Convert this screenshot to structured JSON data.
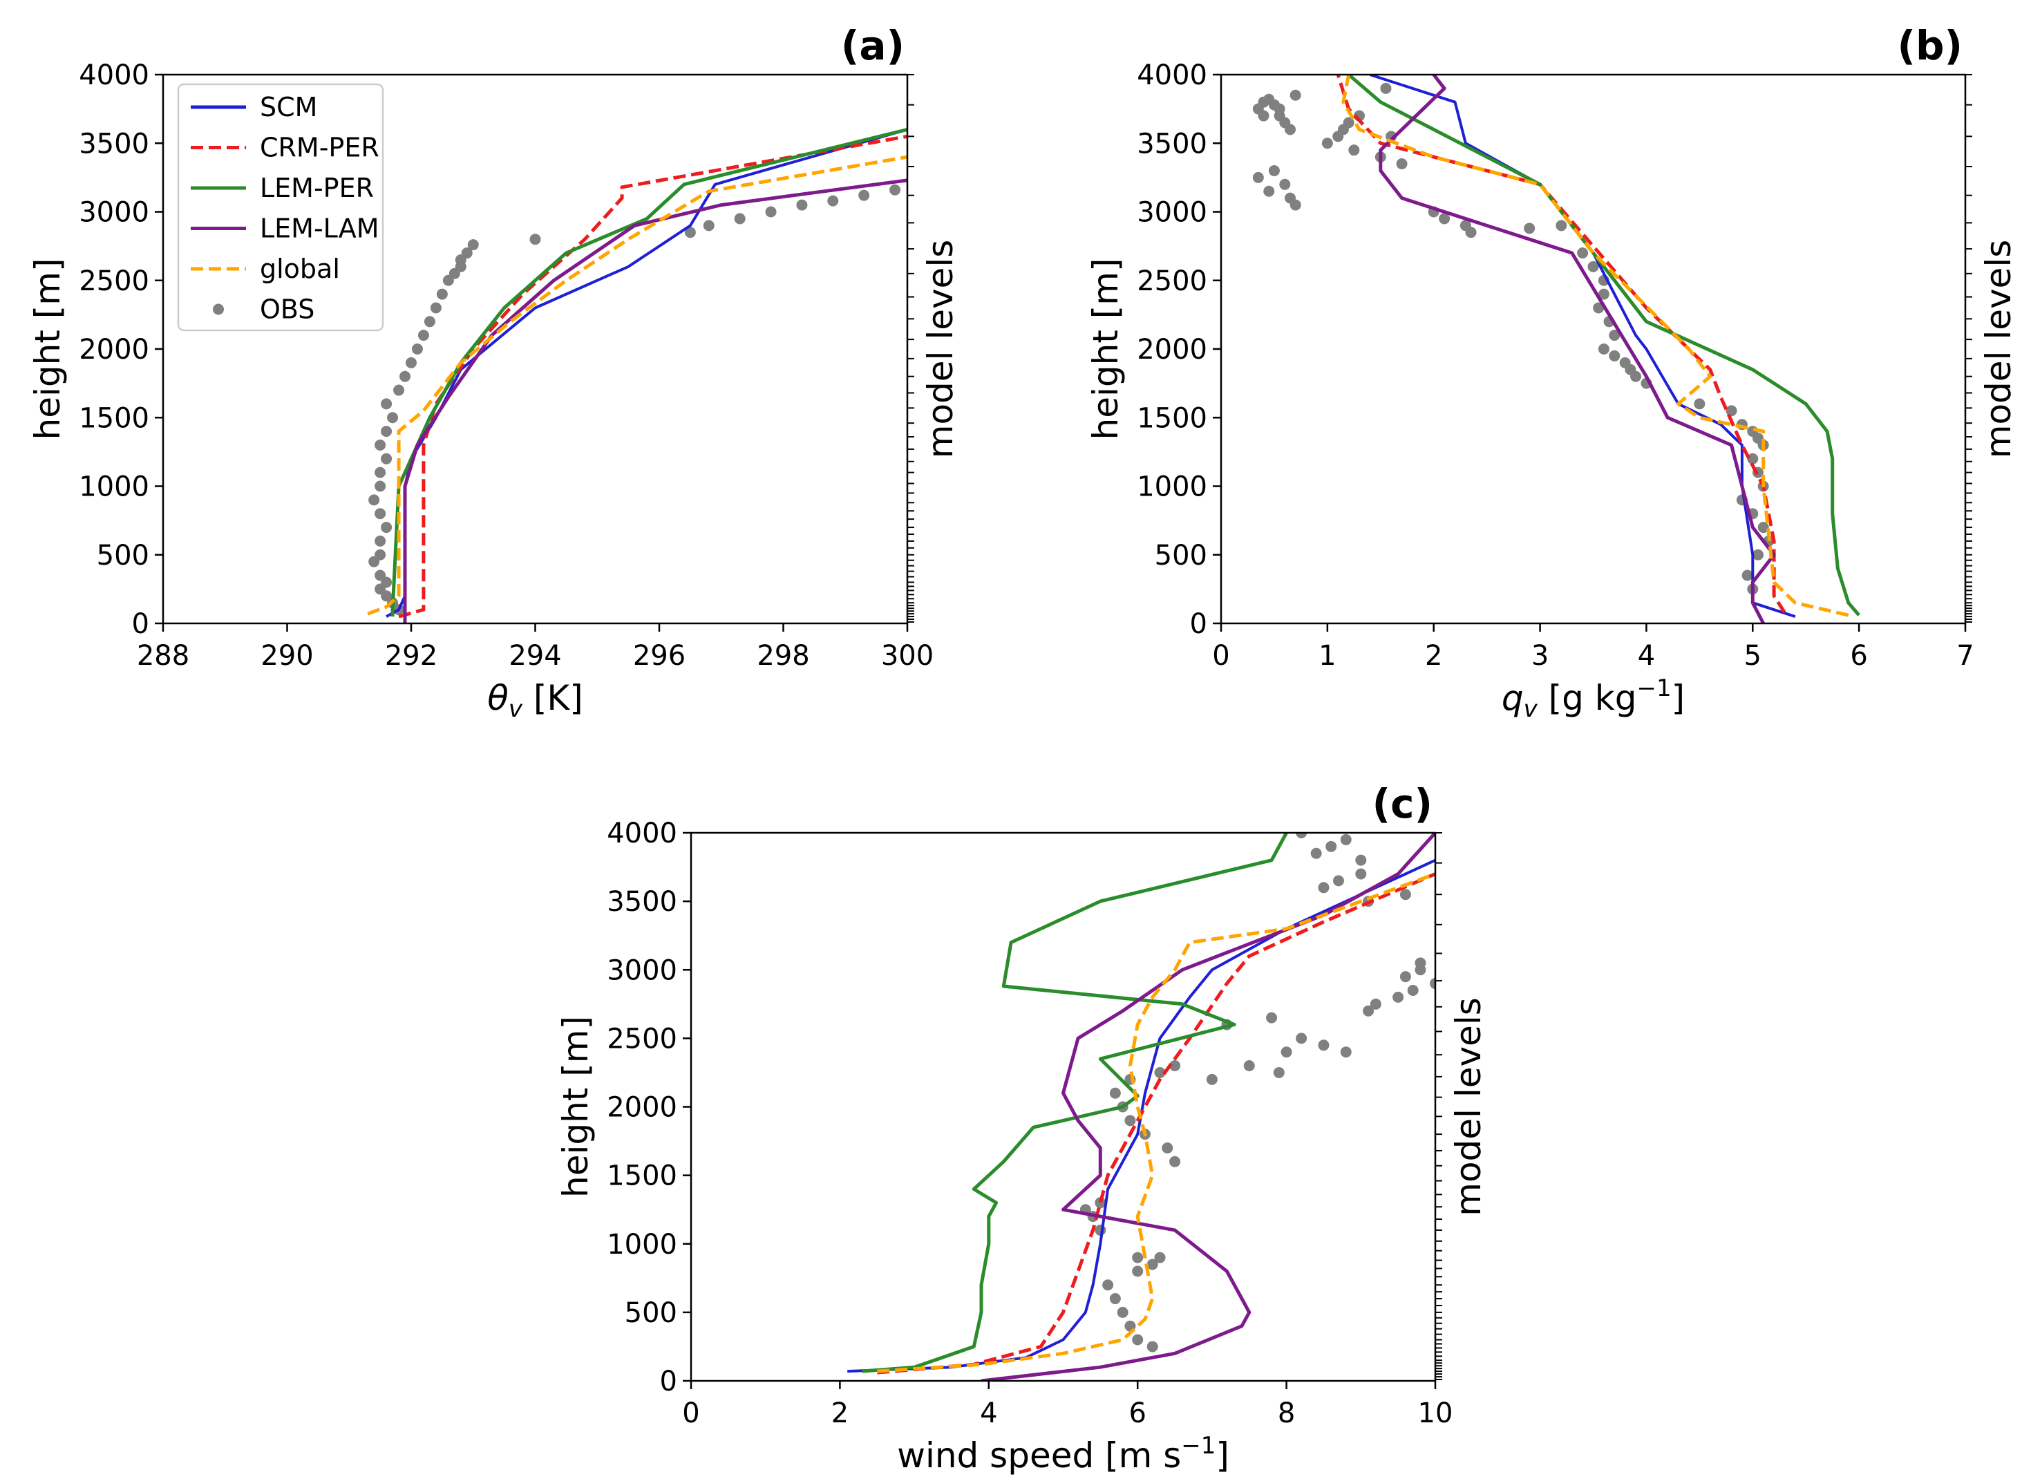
{
  "figure": {
    "panels": [
      {
        "id": "a",
        "letter": "(a)",
        "xlabel_main": "θ",
        "xlabel_sub": "v",
        "xlabel_rest": " [K]",
        "xlabel_sup": "",
        "xlabel_end": "",
        "ylabel": "height [m]",
        "side_label": "model levels"
      },
      {
        "id": "b",
        "letter": "(b)",
        "xlabel_main": "q",
        "xlabel_sub": "v",
        "xlabel_rest": " [g kg",
        "xlabel_sup": "−1",
        "xlabel_end": "]",
        "ylabel": "height [m]",
        "side_label": "model levels"
      },
      {
        "id": "c",
        "letter": "(c)",
        "xlabel_main": "wind speed [m s",
        "xlabel_sub": "",
        "xlabel_rest": "",
        "xlabel_sup": "−1",
        "xlabel_end": "]",
        "ylabel": "height [m]",
        "side_label": "model levels"
      }
    ],
    "legend": [
      {
        "name": "SCM",
        "color": "#1f1fd6",
        "style": "solid",
        "marker": "line"
      },
      {
        "name": "CRM-PER",
        "color": "#ee1c1c",
        "style": "dashed",
        "marker": "line"
      },
      {
        "name": "LEM-PER",
        "color": "#2a8c2a",
        "style": "solid",
        "marker": "line"
      },
      {
        "name": "LEM-LAM",
        "color": "#7d1a8c",
        "style": "solid",
        "marker": "line"
      },
      {
        "name": "global",
        "color": "#ffa500",
        "style": "dashed",
        "marker": "line"
      },
      {
        "name": "OBS",
        "color": "#808080",
        "style": "none",
        "marker": "dot"
      }
    ]
  },
  "chart_data": [
    {
      "type": "line",
      "panel": "a",
      "xlim": [
        288,
        300
      ],
      "ylim": [
        0,
        4000
      ],
      "xticks": [
        288,
        290,
        292,
        294,
        296,
        298,
        300
      ],
      "yticks": [
        0,
        500,
        1000,
        1500,
        2000,
        2500,
        3000,
        3500,
        4000
      ],
      "model_levels": [
        10,
        30,
        50,
        70,
        90,
        110,
        130,
        150,
        180,
        210,
        240,
        270,
        300,
        340,
        380,
        420,
        460,
        500,
        550,
        600,
        650,
        700,
        760,
        820,
        880,
        950,
        1020,
        1100,
        1180,
        1270,
        1360,
        1460,
        1570,
        1680,
        1800,
        1930,
        2070,
        2220,
        2380,
        2550,
        2730,
        2920,
        3120,
        3330,
        3550,
        3780,
        4000
      ],
      "series": [
        {
          "name": "SCM",
          "x": [
            291.6,
            291.8,
            291.9,
            291.9,
            292.0,
            292.4,
            292.8,
            294.0,
            295.5,
            296.5,
            296.9,
            300.0
          ],
          "y": [
            50,
            100,
            200,
            1000,
            1200,
            1500,
            1850,
            2300,
            2600,
            2900,
            3200,
            3600
          ]
        },
        {
          "name": "CRM-PER",
          "x": [
            291.8,
            292.2,
            292.2,
            292.4,
            293.0,
            293.8,
            294.8,
            295.4,
            295.4,
            300.0
          ],
          "y": [
            50,
            100,
            1300,
            1600,
            2000,
            2400,
            2800,
            3100,
            3180,
            3550
          ]
        },
        {
          "name": "LEM-PER",
          "x": [
            291.7,
            291.7,
            291.8,
            292.3,
            292.8,
            293.5,
            294.5,
            295.8,
            296.4,
            300.0
          ],
          "y": [
            50,
            100,
            1000,
            1500,
            1900,
            2300,
            2700,
            2950,
            3200,
            3600
          ]
        },
        {
          "name": "LEM-LAM",
          "x": [
            291.9,
            291.9,
            292.1,
            292.6,
            293.3,
            294.3,
            295.6,
            297.0,
            300.0
          ],
          "y": [
            0,
            1000,
            1300,
            1650,
            2100,
            2500,
            2900,
            3050,
            3230
          ]
        },
        {
          "name": "global",
          "x": [
            291.3,
            291.6,
            291.8,
            291.8,
            292.2,
            292.8,
            293.6,
            294.5,
            295.5,
            296.8,
            300.0
          ],
          "y": [
            70,
            120,
            200,
            1400,
            1550,
            1900,
            2200,
            2500,
            2800,
            3150,
            3400
          ]
        }
      ],
      "obs": {
        "x": [
          291.8,
          291.7,
          291.6,
          291.5,
          291.6,
          291.5,
          291.4,
          291.5,
          291.5,
          291.6,
          291.5,
          291.4,
          291.5,
          291.5,
          291.6,
          291.5,
          291.6,
          291.7,
          291.6,
          291.8,
          291.9,
          292.0,
          292.1,
          292.2,
          292.3,
          292.4,
          292.5,
          292.6,
          292.7,
          292.8,
          292.8,
          292.9,
          293.0,
          294.0,
          296.5,
          296.8,
          297.3,
          297.8,
          298.3,
          298.8,
          299.3,
          299.8
        ],
        "y": [
          100,
          150,
          200,
          250,
          300,
          350,
          450,
          500,
          600,
          700,
          800,
          900,
          1000,
          1100,
          1200,
          1300,
          1400,
          1500,
          1600,
          1700,
          1800,
          1900,
          2000,
          2100,
          2200,
          2300,
          2400,
          2500,
          2550,
          2600,
          2650,
          2700,
          2760,
          2800,
          2850,
          2900,
          2950,
          3000,
          3050,
          3080,
          3120,
          3160
        ]
      }
    },
    {
      "type": "line",
      "panel": "b",
      "xlim": [
        0,
        7
      ],
      "ylim": [
        0,
        4000
      ],
      "xticks": [
        0,
        1,
        2,
        3,
        4,
        5,
        6,
        7
      ],
      "yticks": [
        0,
        500,
        1000,
        1500,
        2000,
        2500,
        3000,
        3500,
        4000
      ],
      "model_levels": [
        10,
        30,
        50,
        70,
        90,
        110,
        130,
        150,
        180,
        210,
        240,
        270,
        300,
        340,
        380,
        420,
        460,
        500,
        550,
        600,
        650,
        700,
        760,
        820,
        880,
        950,
        1020,
        1100,
        1180,
        1270,
        1360,
        1460,
        1570,
        1680,
        1800,
        1930,
        2070,
        2220,
        2380,
        2550,
        2730,
        2920,
        3120,
        3330,
        3550,
        3780,
        4000
      ],
      "series": [
        {
          "name": "SCM",
          "x": [
            5.4,
            5.0,
            5.0,
            4.9,
            4.9,
            4.7,
            4.3,
            4.0,
            3.9,
            3.5,
            3.0,
            2.3,
            2.2,
            1.4
          ],
          "y": [
            50,
            150,
            500,
            1000,
            1300,
            1450,
            1600,
            2000,
            2100,
            2700,
            3200,
            3500,
            3800,
            4000
          ]
        },
        {
          "name": "CRM-PER",
          "x": [
            5.3,
            5.2,
            5.2,
            5.1,
            4.9,
            4.7,
            4.6,
            4.0,
            3.0,
            1.5,
            1.2,
            1.1
          ],
          "y": [
            80,
            200,
            600,
            1000,
            1300,
            1650,
            1850,
            2300,
            3200,
            3500,
            3750,
            4000
          ]
        },
        {
          "name": "LEM-PER",
          "x": [
            6.0,
            5.9,
            5.8,
            5.75,
            5.75,
            5.7,
            5.5,
            5.0,
            4.0,
            3.5,
            3.0,
            1.5,
            1.2
          ],
          "y": [
            60,
            150,
            400,
            800,
            1200,
            1400,
            1600,
            1850,
            2200,
            2700,
            3200,
            3800,
            4000
          ]
        },
        {
          "name": "LEM-LAM",
          "x": [
            5.1,
            5.0,
            5.0,
            5.2,
            5.0,
            4.9,
            4.8,
            4.2,
            4.0,
            3.3,
            2.5,
            1.7,
            1.5,
            1.5,
            2.1,
            2.0
          ],
          "y": [
            0,
            150,
            300,
            500,
            700,
            1000,
            1300,
            1500,
            1800,
            2700,
            2900,
            3100,
            3300,
            3450,
            3900,
            4000
          ]
        },
        {
          "name": "global",
          "x": [
            5.9,
            5.4,
            5.2,
            5.1,
            5.1,
            4.5,
            4.3,
            4.6,
            4.4,
            3.5,
            3.0,
            2.0,
            1.3,
            1.15,
            1.2
          ],
          "y": [
            60,
            150,
            300,
            1000,
            1400,
            1500,
            1600,
            1800,
            2000,
            2700,
            3200,
            3400,
            3600,
            3800,
            4000
          ]
        }
      ],
      "obs": {
        "x": [
          0.35,
          0.4,
          0.45,
          0.5,
          0.55,
          0.6,
          0.65,
          0.7,
          0.35,
          0.5,
          0.6,
          0.45,
          0.65,
          0.4,
          0.55,
          0.7,
          1.0,
          1.1,
          1.15,
          1.2,
          1.3,
          1.25,
          1.5,
          1.7,
          1.6,
          1.55,
          2.0,
          2.1,
          2.3,
          2.35,
          2.9,
          3.2,
          3.4,
          3.5,
          3.6,
          3.6,
          3.55,
          3.65,
          3.7,
          3.6,
          3.7,
          3.8,
          3.85,
          3.9,
          4.0,
          4.5,
          4.8,
          4.9,
          5.0,
          5.05,
          5.1,
          5.0,
          5.05,
          5.1,
          4.9,
          5.0,
          5.1,
          5.15,
          5.05,
          4.95,
          5.0
        ],
        "y": [
          3750,
          3800,
          3820,
          3780,
          3700,
          3650,
          3600,
          3850,
          3250,
          3300,
          3200,
          3150,
          3100,
          3700,
          3750,
          3050,
          3500,
          3550,
          3600,
          3650,
          3700,
          3450,
          3400,
          3350,
          3550,
          3900,
          3000,
          2950,
          2900,
          2850,
          2880,
          2900,
          2700,
          2600,
          2500,
          2400,
          2300,
          2200,
          2100,
          2000,
          1950,
          1900,
          1850,
          1800,
          1750,
          1600,
          1550,
          1450,
          1400,
          1350,
          1300,
          1200,
          1100,
          1000,
          900,
          800,
          700,
          600,
          500,
          350,
          250
        ]
      }
    },
    {
      "type": "line",
      "panel": "c",
      "xlim": [
        0,
        10
      ],
      "ylim": [
        0,
        4000
      ],
      "xticks": [
        0,
        2,
        4,
        6,
        8,
        10
      ],
      "yticks": [
        0,
        500,
        1000,
        1500,
        2000,
        2500,
        3000,
        3500,
        4000
      ],
      "model_levels": [
        10,
        30,
        50,
        70,
        90,
        110,
        130,
        150,
        180,
        210,
        240,
        270,
        300,
        340,
        380,
        420,
        460,
        500,
        550,
        600,
        650,
        700,
        760,
        820,
        880,
        950,
        1020,
        1100,
        1180,
        1270,
        1360,
        1460,
        1570,
        1680,
        1800,
        1930,
        2070,
        2220,
        2380,
        2550,
        2730,
        2920,
        3120,
        3330,
        3550,
        3780,
        4000
      ],
      "series": [
        {
          "name": "SCM",
          "x": [
            2.1,
            3.5,
            4.5,
            5.0,
            5.3,
            5.4,
            5.5,
            5.6,
            5.8,
            6.0,
            6.1,
            6.2,
            6.3,
            6.7,
            7.0,
            7.5,
            8.0,
            9.0,
            10.0
          ],
          "y": [
            70,
            100,
            170,
            300,
            500,
            700,
            1000,
            1400,
            1600,
            1800,
            2100,
            2300,
            2500,
            2800,
            3000,
            3150,
            3300,
            3550,
            3800
          ]
        },
        {
          "name": "CRM-PER",
          "x": [
            2.5,
            3.8,
            4.7,
            5.0,
            5.2,
            5.4,
            5.5,
            5.6,
            5.8,
            6.0,
            6.3,
            6.7,
            7.2,
            7.5,
            8.5,
            10.0
          ],
          "y": [
            60,
            120,
            250,
            500,
            800,
            1100,
            1300,
            1500,
            1700,
            1900,
            2200,
            2500,
            2900,
            3100,
            3350,
            3700
          ]
        },
        {
          "name": "LEM-PER",
          "x": [
            2.3,
            3.0,
            3.8,
            3.9,
            3.9,
            4.0,
            4.0,
            4.1,
            3.8,
            4.2,
            4.6,
            5.8,
            6.0,
            5.5,
            7.3,
            6.6,
            4.2,
            4.3,
            5.5,
            7.8,
            8.0
          ],
          "y": [
            70,
            100,
            250,
            500,
            700,
            1000,
            1200,
            1300,
            1400,
            1600,
            1850,
            2000,
            2080,
            2350,
            2600,
            2750,
            2880,
            3200,
            3500,
            3800,
            4000
          ]
        },
        {
          "name": "LEM-LAM",
          "x": [
            3.9,
            5.5,
            6.5,
            7.4,
            7.5,
            7.4,
            7.2,
            6.5,
            5.0,
            5.5,
            5.5,
            5.2,
            5.0,
            5.2,
            5.8,
            6.6,
            8.5,
            9.5,
            10.0
          ],
          "y": [
            0,
            100,
            200,
            400,
            500,
            600,
            800,
            1100,
            1250,
            1500,
            1700,
            1900,
            2100,
            2500,
            2700,
            3000,
            3400,
            3700,
            4000
          ]
        },
        {
          "name": "global",
          "x": [
            2.5,
            3.9,
            5.0,
            5.8,
            6.1,
            6.2,
            6.1,
            6.0,
            6.2,
            6.1,
            6.0,
            5.9,
            6.0,
            6.2,
            6.5,
            6.7,
            8.0,
            9.0,
            10.0
          ],
          "y": [
            70,
            120,
            200,
            300,
            450,
            600,
            900,
            1200,
            1500,
            1800,
            2000,
            2300,
            2600,
            2800,
            3000,
            3200,
            3300,
            3500,
            3700
          ]
        }
      ],
      "obs": {
        "x": [
          6.2,
          6.0,
          5.9,
          5.8,
          5.7,
          5.6,
          6.0,
          6.0,
          6.2,
          6.3,
          5.5,
          5.4,
          5.3,
          5.5,
          6.5,
          6.4,
          6.1,
          5.9,
          5.8,
          5.7,
          5.9,
          6.3,
          6.5,
          7.0,
          7.5,
          7.9,
          8.0,
          7.2,
          7.8,
          8.2,
          8.5,
          8.8,
          9.1,
          9.2,
          9.5,
          9.7,
          9.8,
          10.0,
          9.6,
          9.8,
          8.5,
          8.7,
          9.0,
          9.1,
          9.6,
          8.8,
          8.6,
          8.2,
          8.4,
          9.0
        ],
        "y": [
          250,
          300,
          400,
          500,
          600,
          700,
          800,
          900,
          850,
          900,
          1100,
          1200,
          1250,
          1300,
          1600,
          1700,
          1800,
          1900,
          2000,
          2100,
          2200,
          2250,
          2300,
          2200,
          2300,
          2250,
          2400,
          2600,
          2650,
          2500,
          2450,
          2400,
          2700,
          2750,
          2800,
          2850,
          3050,
          2900,
          2950,
          3000,
          3600,
          3650,
          3700,
          3500,
          3550,
          3950,
          3900,
          4000,
          3850,
          3800
        ]
      }
    }
  ]
}
